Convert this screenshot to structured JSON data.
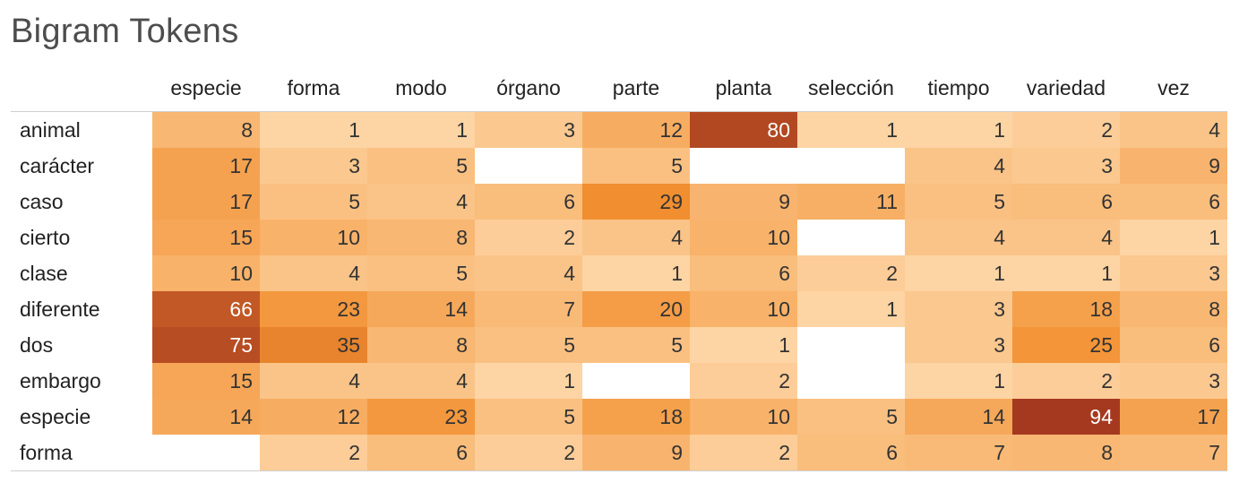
{
  "chart_data": {
    "type": "heatmap",
    "title": "Bigram Tokens",
    "columns": [
      "especie",
      "forma",
      "modo",
      "órgano",
      "parte",
      "planta",
      "selección",
      "tiempo",
      "variedad",
      "vez"
    ],
    "rows": [
      "animal",
      "carácter",
      "caso",
      "cierto",
      "clase",
      "diferente",
      "dos",
      "embargo",
      "especie",
      "forma"
    ],
    "values": [
      [
        8,
        1,
        1,
        3,
        12,
        80,
        1,
        1,
        2,
        4
      ],
      [
        17,
        3,
        5,
        null,
        5,
        null,
        null,
        4,
        3,
        9
      ],
      [
        17,
        5,
        4,
        6,
        29,
        9,
        11,
        5,
        6,
        6
      ],
      [
        15,
        10,
        8,
        2,
        4,
        10,
        null,
        4,
        4,
        1
      ],
      [
        10,
        4,
        5,
        4,
        1,
        6,
        2,
        1,
        1,
        3
      ],
      [
        66,
        23,
        14,
        7,
        20,
        10,
        1,
        3,
        18,
        8
      ],
      [
        75,
        35,
        8,
        5,
        5,
        1,
        null,
        3,
        25,
        6
      ],
      [
        15,
        4,
        4,
        1,
        null,
        2,
        null,
        1,
        2,
        3
      ],
      [
        14,
        12,
        23,
        5,
        18,
        10,
        5,
        14,
        94,
        17
      ],
      [
        null,
        2,
        6,
        2,
        9,
        2,
        6,
        7,
        8,
        7
      ]
    ],
    "color_scale": {
      "low": "#fdd4a3",
      "mid": "#f28f2f",
      "high": "#a5391f",
      "value_range": [
        1,
        94
      ],
      "light_text_color": "#ffffff",
      "dark_text_color": "#333333"
    }
  }
}
